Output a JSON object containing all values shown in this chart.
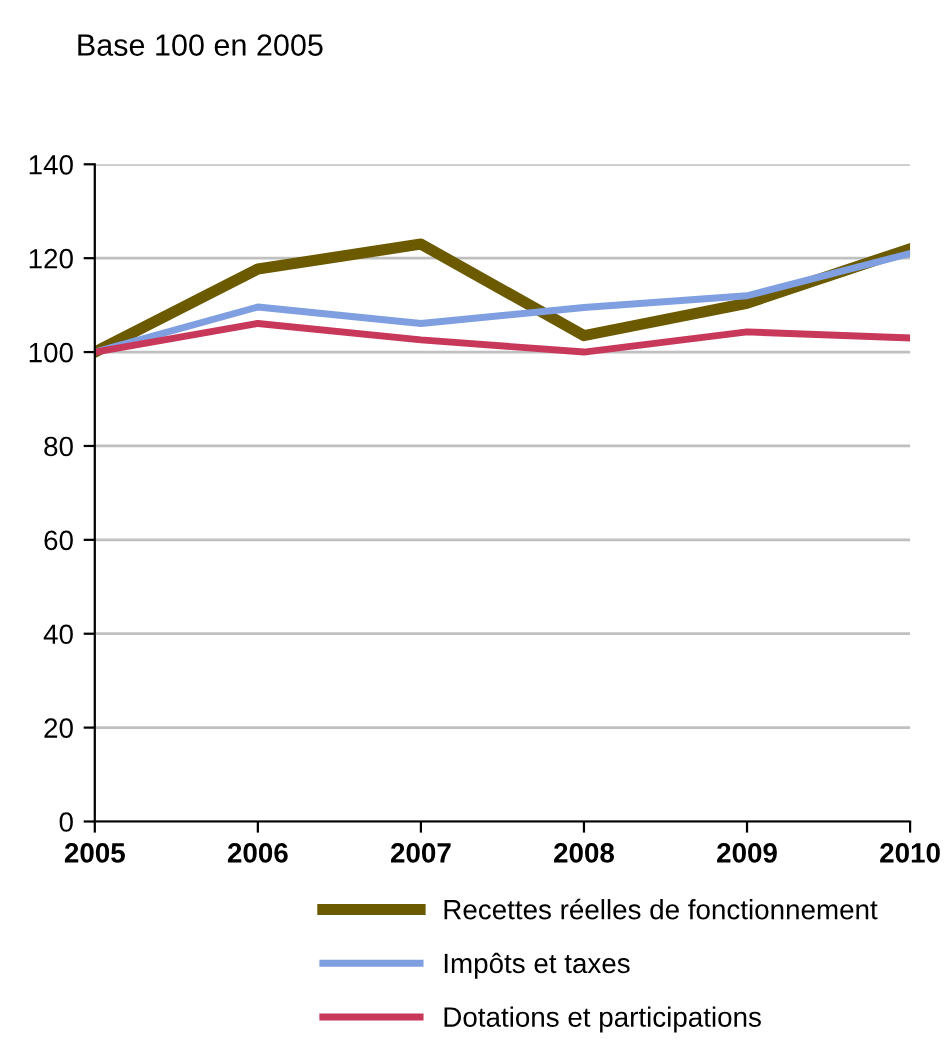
{
  "chart_data": {
    "type": "line",
    "title": "Base 100 en 2005",
    "categories": [
      "2005",
      "2006",
      "2007",
      "2008",
      "2009",
      "2010"
    ],
    "series": [
      {
        "name": "Recettes réelles de fonctionnement",
        "color": "#6b5a00",
        "values": [
          100,
          117.7,
          123,
          103.5,
          110.4,
          122
        ]
      },
      {
        "name": "Impôts et taxes",
        "color": "#7f9fe0",
        "values": [
          100,
          109.6,
          106.1,
          109.5,
          112,
          121
        ]
      },
      {
        "name": "Dotations et participations",
        "color": "#c8385a",
        "values": [
          100,
          106.1,
          102.6,
          100,
          104.3,
          103
        ]
      }
    ],
    "ylim": [
      0,
      140
    ],
    "yticks": [
      0,
      20,
      40,
      60,
      80,
      100,
      120,
      140
    ],
    "grid": "y",
    "legend": "bottom",
    "marker": "none",
    "line_style": "solid"
  }
}
